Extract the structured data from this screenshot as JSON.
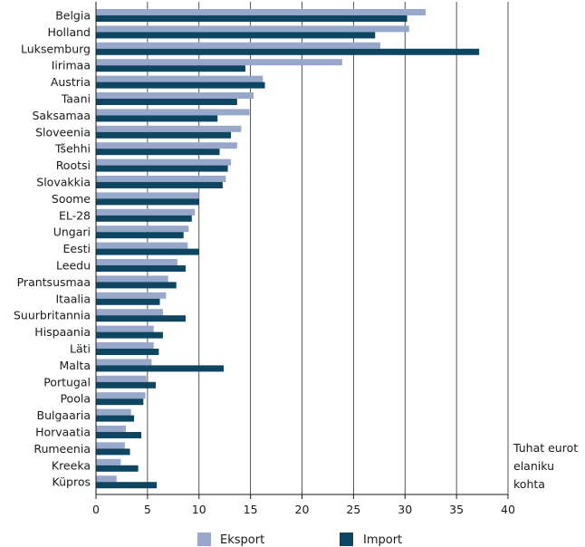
{
  "chart_data": {
    "type": "bar",
    "orientation": "horizontal",
    "categories": [
      "Belgia",
      "Holland",
      "Luksemburg",
      "Iirimaa",
      "Austria",
      "Taani",
      "Saksamaa",
      "Sloveenia",
      "Tšehhi",
      "Rootsi",
      "Slovakkia",
      "Soome",
      "EL-28",
      "Ungari",
      "Eesti",
      "Leedu",
      "Prantsusmaa",
      "Itaalia",
      "Suurbritannia",
      "Hispaania",
      "Läti",
      "Malta",
      "Portugal",
      "Poola",
      "Bulgaaria",
      "Horvaatia",
      "Rumeenia",
      "Kreeka",
      "Küpros"
    ],
    "series": [
      {
        "name": "Eksport",
        "color": "#97a8cb",
        "values": [
          32.0,
          30.4,
          27.6,
          23.9,
          16.2,
          15.3,
          14.9,
          14.1,
          13.7,
          13.1,
          12.6,
          10.0,
          9.6,
          9.0,
          8.9,
          7.9,
          7.0,
          6.8,
          6.5,
          5.6,
          5.6,
          5.4,
          4.9,
          4.8,
          3.4,
          2.9,
          2.8,
          2.4,
          2.0
        ]
      },
      {
        "name": "Import",
        "color": "#0e4560",
        "values": [
          30.2,
          27.1,
          37.2,
          14.5,
          16.4,
          13.7,
          11.8,
          13.1,
          12.0,
          12.8,
          12.3,
          10.0,
          9.3,
          8.5,
          10.0,
          8.7,
          7.8,
          6.2,
          8.7,
          6.5,
          6.1,
          12.4,
          5.8,
          4.6,
          3.7,
          4.4,
          3.3,
          4.1,
          5.9
        ]
      }
    ],
    "xlim": [
      0,
      40
    ],
    "xticks": [
      0,
      5,
      10,
      15,
      20,
      25,
      30,
      35,
      40
    ],
    "xlabel": "Tuhat eurot elaniku kohta",
    "xlabel_lines": [
      "Tuhat eurot",
      "elaniku",
      "kohta"
    ],
    "grid_x": true,
    "legend_position": "bottom-center"
  }
}
